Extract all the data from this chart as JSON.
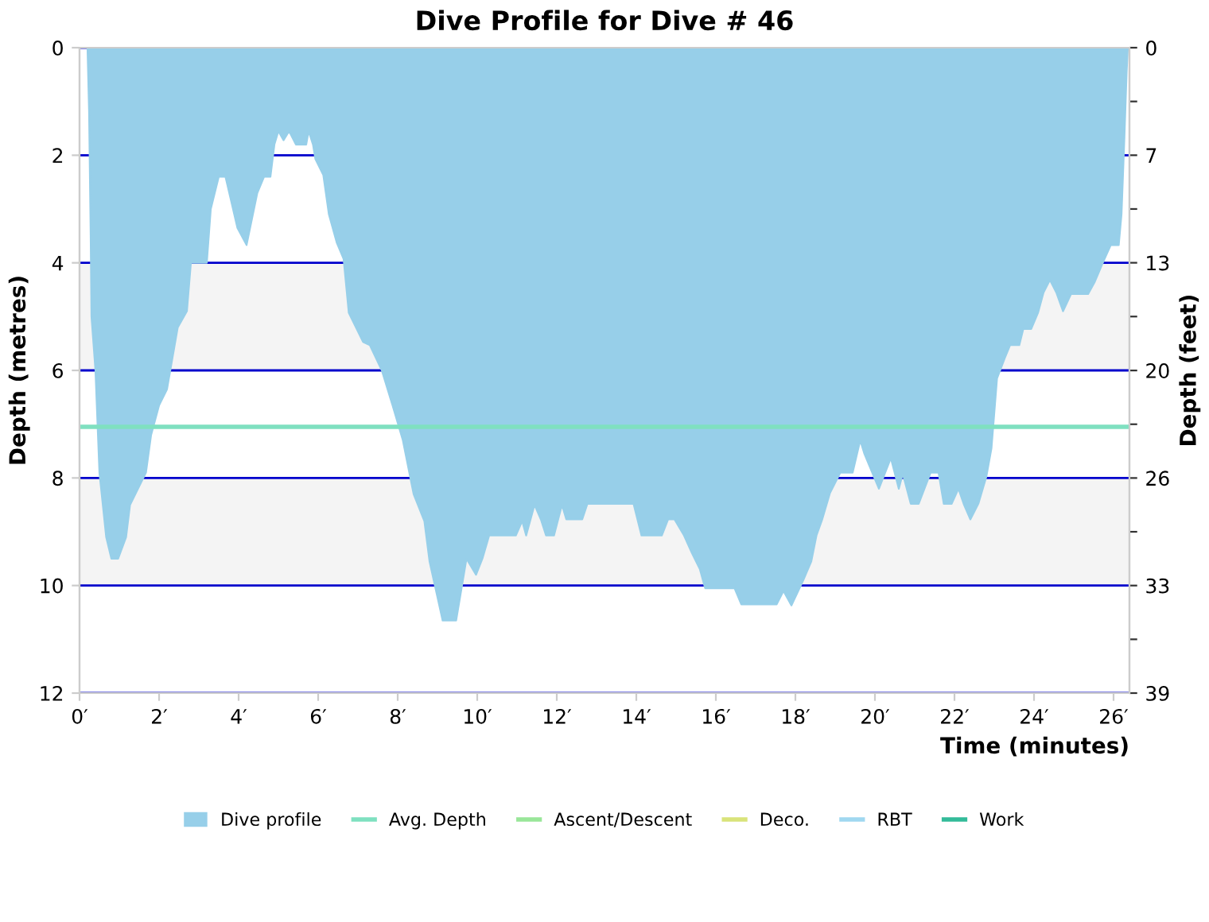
{
  "chart_data": {
    "type": "area",
    "title": "Dive Profile for Dive # 46",
    "xlabel": "Time (minutes)",
    "ylabel": "Depth (metres)",
    "y2label": "Depth (feet)",
    "xlim": [
      0,
      26.4
    ],
    "xticks": [
      {
        "value": 0,
        "label": "0′"
      },
      {
        "value": 2,
        "label": "2′"
      },
      {
        "value": 4,
        "label": "4′"
      },
      {
        "value": 6,
        "label": "6′"
      },
      {
        "value": 8,
        "label": "8′"
      },
      {
        "value": 10,
        "label": "10′"
      },
      {
        "value": 12,
        "label": "12′"
      },
      {
        "value": 14,
        "label": "14′"
      },
      {
        "value": 16,
        "label": "16′"
      },
      {
        "value": 18,
        "label": "18′"
      },
      {
        "value": 20,
        "label": "20′"
      },
      {
        "value": 22,
        "label": "22′"
      },
      {
        "value": 24,
        "label": "24′"
      },
      {
        "value": 26,
        "label": "26′"
      }
    ],
    "ylim": [
      12,
      0
    ],
    "yticks": [
      0,
      2,
      4,
      6,
      8,
      10,
      12
    ],
    "y2lim": [
      39.37,
      0
    ],
    "y2ticks": [
      {
        "value": 0,
        "label": "0"
      },
      {
        "value": 3.28,
        "label": null
      },
      {
        "value": 6.56,
        "label": "7"
      },
      {
        "value": 9.84,
        "label": null
      },
      {
        "value": 13.12,
        "label": "13"
      },
      {
        "value": 16.4,
        "label": null
      },
      {
        "value": 19.69,
        "label": "20"
      },
      {
        "value": 22.97,
        "label": null
      },
      {
        "value": 26.25,
        "label": "26"
      },
      {
        "value": 29.53,
        "label": null
      },
      {
        "value": 32.81,
        "label": "33"
      },
      {
        "value": 36.09,
        "label": null
      },
      {
        "value": 39.37,
        "label": "39"
      }
    ],
    "grid": "y",
    "legend": "bottom",
    "bands": [
      {
        "axis": "y",
        "from": 4,
        "to": 6,
        "color": "#f4f4f4"
      },
      {
        "axis": "y",
        "from": 8,
        "to": 10,
        "color": "#f4f4f4"
      }
    ],
    "ref_lines": [
      {
        "axis": "y",
        "value": 7.05,
        "label": "Avg. Depth",
        "color": "#7fe0c0"
      }
    ],
    "series": [
      {
        "name": "Dive profile",
        "color": "#97cfe9",
        "x": [
          0.2,
          0.24,
          0.28,
          0.3,
          0.4,
          0.5,
          0.67,
          0.8,
          0.97,
          1.17,
          1.27,
          1.67,
          1.8,
          2.0,
          2.2,
          2.47,
          2.7,
          2.8,
          3.2,
          3.3,
          3.5,
          3.67,
          3.97,
          4.2,
          4.47,
          4.64,
          4.8,
          4.9,
          5.0,
          5.13,
          5.27,
          5.44,
          5.7,
          5.76,
          5.87,
          5.93,
          6.13,
          6.27,
          6.47,
          6.64,
          6.77,
          7.13,
          7.3,
          7.6,
          7.87,
          8.13,
          8.4,
          8.67,
          8.8,
          9.13,
          9.47,
          9.73,
          9.97,
          10.13,
          10.3,
          10.97,
          11.13,
          11.23,
          11.44,
          11.6,
          11.73,
          11.93,
          12.13,
          12.24,
          12.64,
          12.77,
          13.93,
          14.13,
          14.64,
          14.8,
          14.96,
          15.2,
          15.4,
          15.6,
          15.73,
          16.47,
          16.64,
          17.53,
          17.7,
          17.9,
          18.2,
          18.4,
          18.53,
          18.67,
          18.87,
          19.13,
          19.44,
          19.63,
          19.73,
          20.1,
          20.4,
          20.6,
          20.7,
          20.9,
          21.1,
          21.4,
          21.6,
          21.73,
          21.93,
          22.1,
          22.24,
          22.4,
          22.6,
          22.8,
          22.93,
          23.07,
          23.27,
          23.4,
          23.63,
          23.73,
          23.93,
          24.1,
          24.24,
          24.4,
          24.56,
          24.73,
          24.93,
          25.36,
          25.53,
          25.73,
          25.93,
          26.13,
          26.2,
          26.27,
          26.33,
          26.36
        ],
        "values": [
          0,
          1.2,
          3.5,
          5.0,
          6.0,
          7.9,
          9.1,
          9.5,
          9.5,
          9.1,
          8.5,
          7.9,
          7.2,
          6.65,
          6.35,
          5.2,
          4.9,
          4.0,
          4.0,
          3.0,
          2.4,
          2.4,
          3.35,
          3.67,
          2.7,
          2.4,
          2.4,
          1.8,
          1.55,
          1.72,
          1.55,
          1.8,
          1.8,
          1.55,
          1.8,
          2.07,
          2.37,
          3.1,
          3.63,
          3.93,
          4.93,
          5.47,
          5.53,
          6.0,
          6.65,
          7.3,
          8.3,
          8.8,
          9.55,
          10.65,
          10.65,
          9.5,
          9.8,
          9.5,
          9.07,
          9.07,
          8.8,
          9.07,
          8.5,
          8.77,
          9.07,
          9.07,
          8.5,
          8.77,
          8.77,
          8.48,
          8.48,
          9.07,
          9.07,
          8.77,
          8.77,
          9.07,
          9.4,
          9.7,
          10.05,
          10.05,
          10.35,
          10.35,
          10.1,
          10.37,
          9.9,
          9.55,
          9.07,
          8.78,
          8.28,
          7.9,
          7.9,
          7.3,
          7.54,
          8.2,
          7.63,
          8.2,
          7.92,
          8.48,
          8.48,
          7.9,
          7.9,
          8.48,
          8.48,
          8.2,
          8.5,
          8.77,
          8.48,
          7.98,
          7.45,
          6.15,
          5.76,
          5.53,
          5.53,
          5.23,
          5.23,
          4.93,
          4.55,
          4.32,
          4.55,
          4.9,
          4.58,
          4.58,
          4.35,
          4.0,
          3.67,
          3.67,
          3.1,
          1.72,
          0.44,
          0
        ]
      },
      {
        "name": "Ascent/Descent",
        "type": "line",
        "color": "#99e699"
      },
      {
        "name": "Deco.",
        "type": "line",
        "color": "#d9e37a"
      },
      {
        "name": "RBT",
        "type": "line",
        "color": "#a0d8f0"
      },
      {
        "name": "Work",
        "type": "line",
        "color": "#33bb99"
      }
    ]
  }
}
